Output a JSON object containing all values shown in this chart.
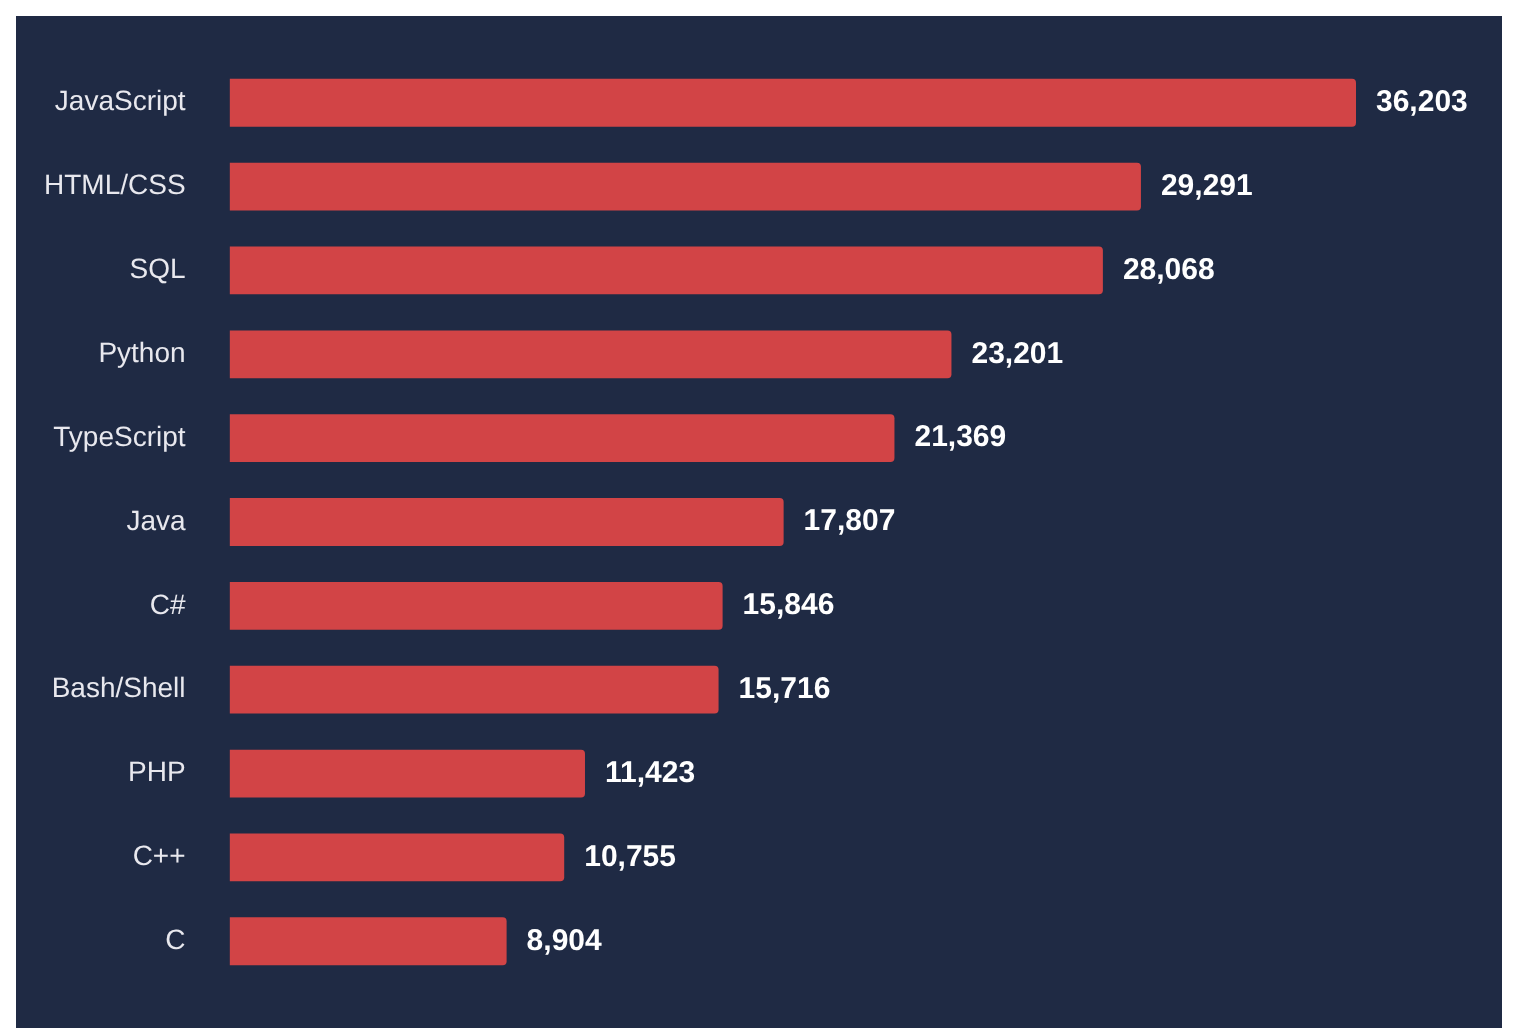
{
  "chart_data": {
    "type": "bar",
    "orientation": "horizontal",
    "categories": [
      "JavaScript",
      "HTML/CSS",
      "SQL",
      "Python",
      "TypeScript",
      "Java",
      "C#",
      "Bash/Shell",
      "PHP",
      "C++",
      "C"
    ],
    "values": [
      36203,
      29291,
      28068,
      23201,
      21369,
      17807,
      15846,
      15716,
      11423,
      10755,
      8904
    ],
    "value_labels": [
      "36,203",
      "29,291",
      "28,068",
      "23,201",
      "21,369",
      "17,807",
      "15,846",
      "15,716",
      "11,423",
      "10,755",
      "8,904"
    ],
    "color": "#d24446",
    "tick_labels": "y"
  }
}
